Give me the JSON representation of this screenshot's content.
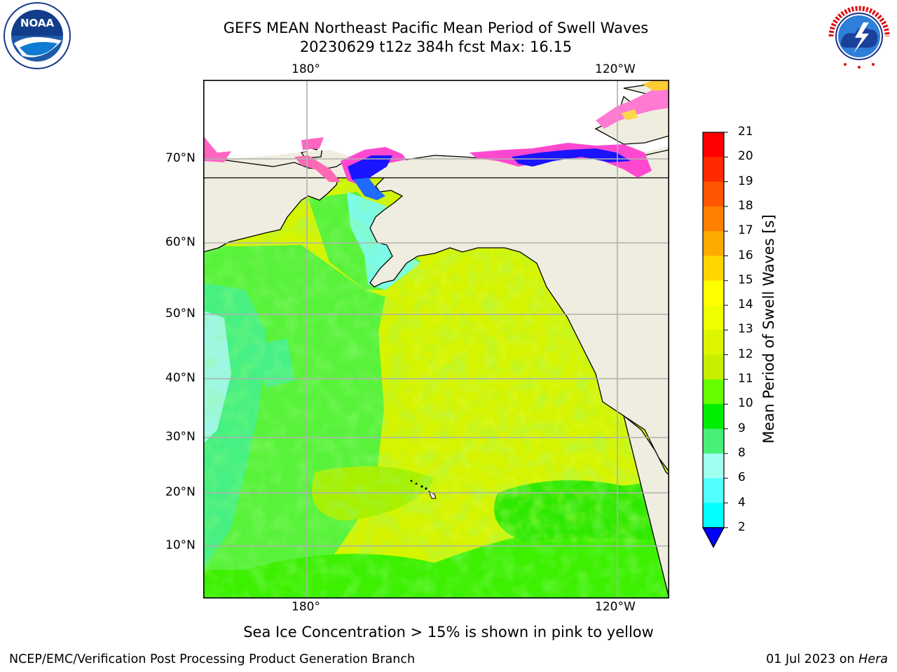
{
  "header": {
    "title_line1": "GEFS MEAN Northeast Pacific Mean Period of Swell Waves",
    "title_line2": "20230629 t12z 384h fcst   Max: 16.15"
  },
  "logos": {
    "left": {
      "name": "noaa-logo",
      "text": "NOAA"
    },
    "right": {
      "name": "nws-logo",
      "text": "NATIONAL WEATHER SERVICE"
    }
  },
  "map": {
    "lon_ticks_top": [
      "180°",
      "120°W"
    ],
    "lon_ticks_bottom": [
      "180°",
      "120°W"
    ],
    "lat_ticks": [
      "70°N",
      "60°N",
      "50°N",
      "40°N",
      "30°N",
      "20°N",
      "10°N"
    ],
    "land_color": "#efeddf",
    "grid": true
  },
  "colorbar": {
    "label": "Mean Period of Swell Waves [s]",
    "ticks": [
      "21",
      "20",
      "19",
      "18",
      "17",
      "16",
      "15",
      "14",
      "13",
      "12",
      "11",
      "10",
      "9",
      "8",
      "6",
      "4",
      "2"
    ],
    "colors": [
      "#ff0000",
      "#ff2a00",
      "#ff5500",
      "#ff7f00",
      "#ffaa00",
      "#ffd500",
      "#ffff00",
      "#eeff00",
      "#ddf500",
      "#c8ef00",
      "#66ff00",
      "#00ee00",
      "#48f07a",
      "#a0fff0",
      "#50ffff",
      "#00ffff",
      "#00bfff",
      "#0066ff"
    ],
    "extend_color": "#0000ff"
  },
  "note": "Sea Ice Concentration > 15% is shown in pink to yellow",
  "footer": {
    "left": "NCEP/EMC/Verification Post Processing Product Generation Branch",
    "date": "01 Jul 2023 on ",
    "machine": "Hera"
  }
}
